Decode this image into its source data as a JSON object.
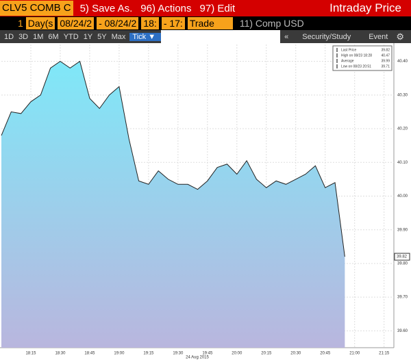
{
  "toolbar": {
    "row1": {
      "ticker": "CLV5 COMB C",
      "save": "5) Save As.",
      "actions": "96) Actions",
      "edit": "97) Edit",
      "title": "Intraday Price"
    },
    "row2": {
      "num": "1",
      "period": "Day(s",
      "start_date": "08/24/2",
      "end_date": "- 08/24/2",
      "start_time": "18:",
      "end_time": "- 17:",
      "field": "Trade",
      "comp": "11) Comp USD"
    },
    "row3": {
      "ranges": [
        "1D",
        "3D",
        "1M",
        "6M",
        "YTD",
        "1Y",
        "5Y",
        "Max"
      ],
      "tick": "Tick ▼",
      "collapse": "«",
      "study": "Security/Study",
      "event": "Event"
    }
  },
  "chart_data": {
    "type": "area",
    "x": [
      "18:00",
      "18:05",
      "18:10",
      "18:15",
      "18:20",
      "18:25",
      "18:30",
      "18:35",
      "18:40",
      "18:45",
      "18:50",
      "18:55",
      "19:00",
      "19:05",
      "19:10",
      "19:15",
      "19:20",
      "19:25",
      "19:30",
      "19:35",
      "19:40",
      "19:45",
      "19:50",
      "19:55",
      "20:00",
      "20:05",
      "20:10",
      "20:15",
      "20:20",
      "20:25",
      "20:30",
      "20:35",
      "20:40",
      "20:45",
      "20:50",
      "20:55"
    ],
    "series": [
      {
        "name": "Last Price",
        "color": "#222222",
        "values": [
          40.18,
          40.25,
          40.245,
          40.28,
          40.3,
          40.38,
          40.4,
          40.38,
          40.4,
          40.29,
          40.26,
          40.3,
          40.325,
          40.17,
          40.045,
          40.035,
          40.075,
          40.05,
          40.035,
          40.035,
          40.02,
          40.045,
          40.085,
          40.095,
          40.065,
          40.105,
          40.05,
          40.025,
          40.045,
          40.035,
          40.05,
          40.065,
          40.09,
          40.025,
          40.04,
          39.82
        ]
      }
    ],
    "xlim": [
      "18:00",
      "21:20"
    ],
    "xticks": [
      "18:15",
      "18:30",
      "18:45",
      "19:00",
      "19:15",
      "19:30",
      "19:45",
      "20:00",
      "20:15",
      "20:30",
      "20:45",
      "21:00",
      "21:15"
    ],
    "xlabel": "24 Aug 2015",
    "ylim": [
      39.55,
      40.45
    ],
    "yticks": [
      {
        "value": 39.6,
        "label": "39.60"
      },
      {
        "value": 39.7,
        "label": "39.70"
      },
      {
        "value": 39.8,
        "label": "39.80"
      },
      {
        "value": 39.9,
        "label": "39.90"
      },
      {
        "value": 40.0,
        "label": "40.00"
      },
      {
        "value": 40.1,
        "label": "40.10"
      },
      {
        "value": 40.2,
        "label": "40.20"
      },
      {
        "value": 40.3,
        "label": "40.30"
      },
      {
        "value": 40.4,
        "label": "40.40"
      }
    ],
    "grid": true,
    "legend": [
      {
        "label": "Last Price",
        "value": "39.82"
      },
      {
        "label": "High on 08/23 18:28",
        "value": "40.47"
      },
      {
        "label": "Average",
        "value": "39.99"
      },
      {
        "label": "Low on 08/23 20:51",
        "value": "39.71"
      }
    ]
  }
}
